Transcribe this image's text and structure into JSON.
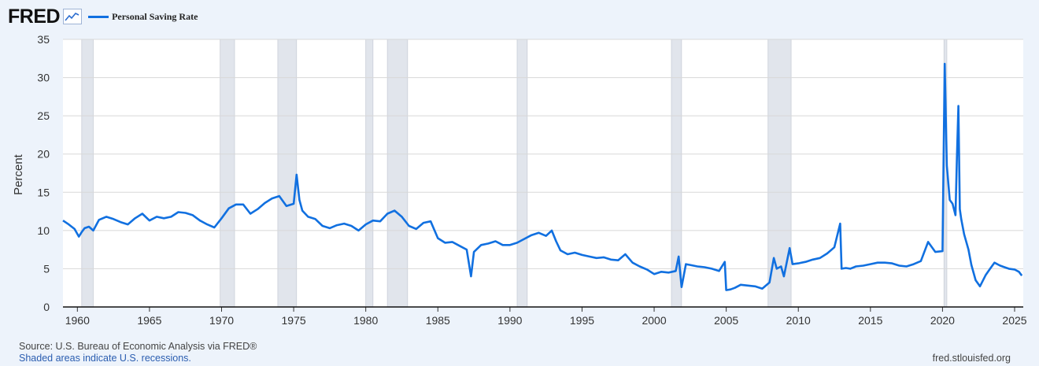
{
  "brand": {
    "logo_text": "FRED"
  },
  "legend": {
    "label": "Personal Saving Rate"
  },
  "footer": {
    "source": "Source: U.S. Bureau of Economic Analysis via FRED®",
    "recessions_note": "Shaded areas indicate U.S. recessions.",
    "site": "fred.stlouisfed.org"
  },
  "colors": {
    "series": "#1170e0",
    "recession": "#e1e5ec",
    "grid": "#d8d8d8",
    "background": "#edf3fb"
  },
  "chart_data": {
    "type": "line",
    "ylabel": "Percent",
    "xlim": [
      1959.0,
      2025.6
    ],
    "ylim": [
      0,
      35
    ],
    "yticks": [
      0,
      5,
      10,
      15,
      20,
      25,
      30,
      35
    ],
    "xticks": [
      1960,
      1965,
      1970,
      1975,
      1980,
      1985,
      1990,
      1995,
      2000,
      2005,
      2010,
      2015,
      2020,
      2025
    ],
    "grid": true,
    "legend_position": "top-left",
    "recessions": [
      [
        1960.3,
        1961.1
      ],
      [
        1969.9,
        1970.9
      ],
      [
        1973.9,
        1975.2
      ],
      [
        1980.0,
        1980.5
      ],
      [
        1981.5,
        1982.9
      ],
      [
        1990.5,
        1991.2
      ],
      [
        2001.2,
        2001.9
      ],
      [
        2007.9,
        2009.5
      ],
      [
        2020.1,
        2020.3
      ]
    ],
    "series": [
      {
        "x": [
          1959.0,
          1959.4,
          1959.8,
          1960.1,
          1960.3,
          1960.5,
          1960.8,
          1961.1,
          1961.5,
          1962.0,
          1962.5,
          1963.0,
          1963.5,
          1964.0,
          1964.5,
          1965.0,
          1965.5,
          1966.0,
          1966.5,
          1967.0,
          1967.5,
          1968.0,
          1968.5,
          1969.0,
          1969.5,
          1970.0,
          1970.5,
          1971.0,
          1971.5,
          1972.0,
          1972.5,
          1973.0,
          1973.5,
          1974.0,
          1974.5,
          1975.0,
          1975.2,
          1975.4,
          1975.6,
          1976.0,
          1976.5,
          1977.0,
          1977.5,
          1978.0,
          1978.5,
          1979.0,
          1979.5,
          1980.0,
          1980.5,
          1981.0,
          1981.5,
          1982.0,
          1982.5,
          1983.0,
          1983.5,
          1984.0,
          1984.5,
          1985.0,
          1985.5,
          1986.0,
          1986.5,
          1987.0,
          1987.3,
          1987.5,
          1988.0,
          1988.5,
          1989.0,
          1989.5,
          1990.0,
          1990.5,
          1991.0,
          1991.5,
          1992.0,
          1992.5,
          1992.9,
          1993.2,
          1993.5,
          1994.0,
          1994.5,
          1995.0,
          1995.5,
          1996.0,
          1996.5,
          1997.0,
          1997.5,
          1998.0,
          1998.5,
          1999.0,
          1999.5,
          2000.0,
          2000.5,
          2001.0,
          2001.5,
          2001.7,
          2001.9,
          2002.2,
          2002.5,
          2003.0,
          2003.5,
          2004.0,
          2004.5,
          2004.9,
          2005.0,
          2005.3,
          2005.6,
          2006.0,
          2006.5,
          2007.0,
          2007.5,
          2008.0,
          2008.3,
          2008.5,
          2008.8,
          2009.0,
          2009.4,
          2009.6,
          2010.0,
          2010.5,
          2011.0,
          2011.5,
          2012.0,
          2012.5,
          2012.9,
          2013.0,
          2013.3,
          2013.6,
          2014.0,
          2014.5,
          2015.0,
          2015.5,
          2016.0,
          2016.5,
          2017.0,
          2017.5,
          2018.0,
          2018.5,
          2019.0,
          2019.5,
          2020.0,
          2020.15,
          2020.3,
          2020.5,
          2020.7,
          2020.9,
          2021.0,
          2021.1,
          2021.2,
          2021.3,
          2021.5,
          2021.8,
          2022.0,
          2022.3,
          2022.6,
          2023.0,
          2023.3,
          2023.6,
          2024.0,
          2024.3,
          2024.6,
          2025.0,
          2025.3,
          2025.5
        ],
        "y": [
          11.3,
          10.8,
          10.2,
          9.2,
          9.8,
          10.3,
          10.5,
          10.0,
          11.4,
          11.8,
          11.5,
          11.1,
          10.8,
          11.6,
          12.2,
          11.3,
          11.8,
          11.6,
          11.8,
          12.4,
          12.3,
          12.0,
          11.3,
          10.8,
          10.4,
          11.6,
          12.9,
          13.4,
          13.4,
          12.2,
          12.8,
          13.6,
          14.2,
          14.5,
          13.2,
          13.5,
          17.3,
          14.0,
          12.6,
          11.8,
          11.5,
          10.6,
          10.3,
          10.7,
          10.9,
          10.6,
          10.0,
          10.8,
          11.3,
          11.2,
          12.2,
          12.6,
          11.8,
          10.6,
          10.2,
          11.0,
          11.2,
          9.0,
          8.4,
          8.5,
          8.0,
          7.5,
          4.0,
          7.2,
          8.1,
          8.3,
          8.6,
          8.1,
          8.1,
          8.4,
          8.9,
          9.4,
          9.7,
          9.3,
          10.0,
          8.6,
          7.4,
          6.9,
          7.1,
          6.8,
          6.6,
          6.4,
          6.5,
          6.2,
          6.1,
          6.9,
          5.8,
          5.3,
          4.9,
          4.3,
          4.6,
          4.5,
          4.7,
          6.6,
          2.6,
          5.6,
          5.5,
          5.3,
          5.2,
          5.0,
          4.7,
          5.9,
          2.2,
          2.3,
          2.5,
          2.9,
          2.8,
          2.7,
          2.4,
          3.2,
          6.4,
          5.0,
          5.3,
          4.0,
          7.7,
          5.6,
          5.7,
          5.9,
          6.2,
          6.4,
          7.0,
          7.8,
          10.9,
          5.0,
          5.1,
          5.0,
          5.3,
          5.4,
          5.6,
          5.8,
          5.8,
          5.7,
          5.4,
          5.3,
          5.6,
          6.0,
          8.5,
          7.2,
          7.3,
          31.8,
          18.5,
          14.0,
          13.5,
          12.0,
          19.5,
          26.3,
          12.8,
          11.5,
          9.5,
          7.5,
          5.5,
          3.5,
          2.7,
          4.2,
          5.0,
          5.8,
          5.4,
          5.2,
          5.0,
          4.9,
          4.6,
          4.1
        ]
      }
    ]
  }
}
